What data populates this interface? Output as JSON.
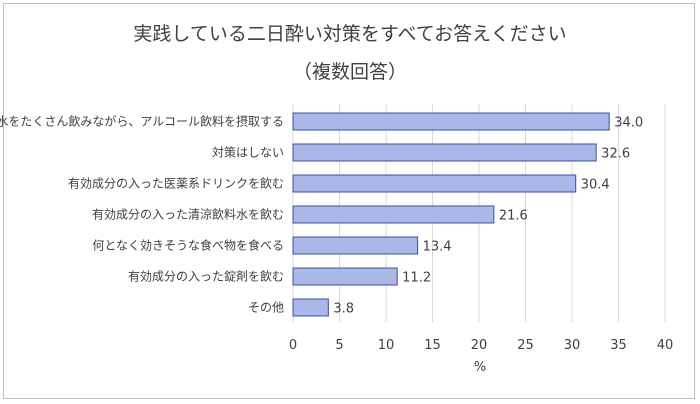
{
  "chart_data": {
    "type": "bar",
    "orientation": "horizontal",
    "title": "実践している二日酔い対策をすべてお答えください",
    "subtitle": "（複数回答）",
    "categories": [
      "水をたくさん飲みながら、アルコール飲料を摂取する",
      "対策はしない",
      "有効成分の入った医薬系ドリンクを飲む",
      "有効成分の入った清涼飲料水を飲む",
      "何となく効きそうな食べ物を食べる",
      "有効成分の入った錠剤を飲む",
      "その他"
    ],
    "values": [
      34.0,
      32.6,
      30.4,
      21.6,
      13.4,
      11.2,
      3.8
    ],
    "value_labels": [
      "34.0",
      "32.6",
      "30.4",
      "21.6",
      "13.4",
      "11.2",
      "3.8"
    ],
    "xlabel": "%",
    "xlim": [
      0,
      40
    ],
    "xticks": [
      0,
      5,
      10,
      15,
      20,
      25,
      30,
      35,
      40
    ],
    "grid": true,
    "bar_color": "#a9b8e6",
    "bar_border_color": "#3b4fa3"
  }
}
